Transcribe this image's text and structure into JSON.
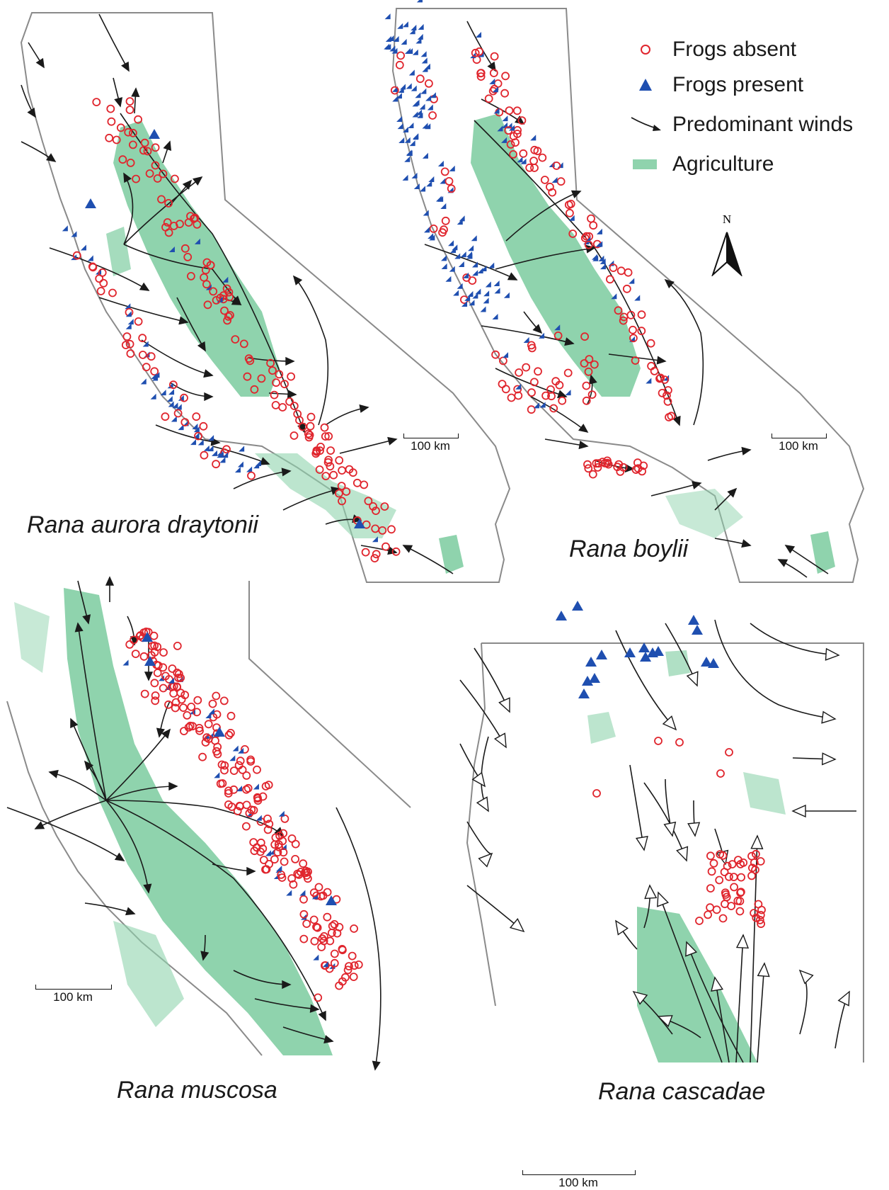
{
  "legend": {
    "absent_label": "Frogs absent",
    "present_label": "Frogs present",
    "winds_label": "Predominant winds",
    "agriculture_label": "Agriculture"
  },
  "north_label": "N",
  "colors": {
    "absent": "#e0252d",
    "present": "#1f4fb0",
    "agriculture": "#8fd3ad",
    "outline": "#8a8a8a",
    "wind": "#1a1a1a"
  },
  "panels": [
    {
      "id": "draytonii",
      "caption": "Rana aurora draytonii",
      "scale_label": "100 km"
    },
    {
      "id": "boylii",
      "caption": "Rana boylii",
      "scale_label": "100 km"
    },
    {
      "id": "muscosa",
      "caption": "Rana muscosa",
      "scale_label": "100 km"
    },
    {
      "id": "cascadae",
      "caption": "Rana cascadae",
      "scale_label": "100 km"
    }
  ]
}
